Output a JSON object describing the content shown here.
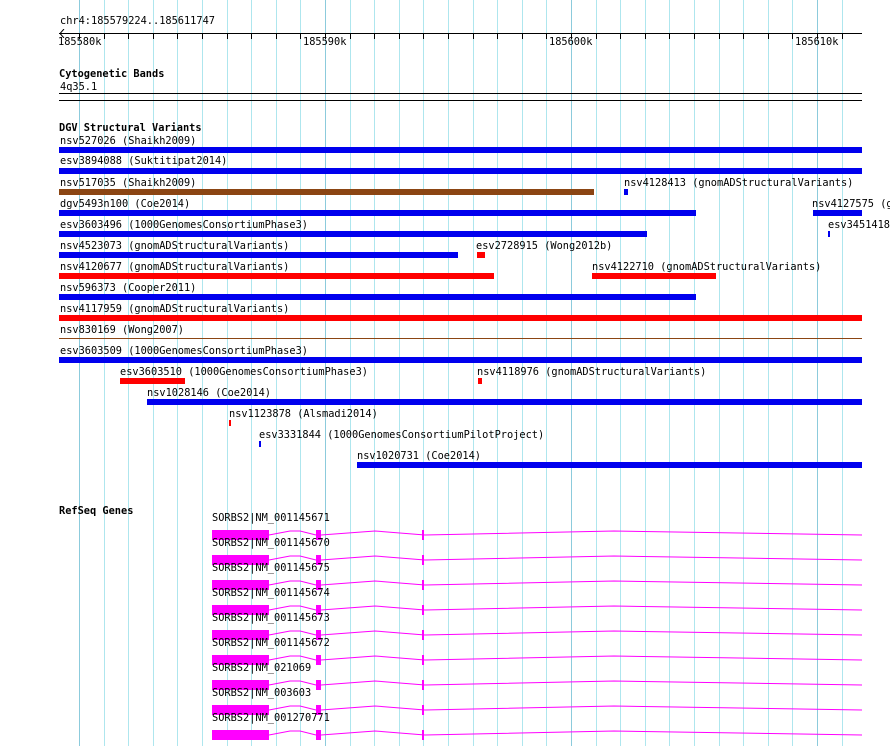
{
  "location": "chr4:185579224..185611747",
  "ruler": {
    "labels": [
      "185580k",
      "185590k",
      "185600k",
      "185610k"
    ]
  },
  "tracks": {
    "cytoband": {
      "title": "Cytogenetic Bands",
      "band": "4q35.1"
    },
    "dgv": {
      "title": "DGV Structural Variants",
      "features": [
        "nsv527026 (Shaikh2009)",
        "esv3894088 (Suktitipat2014)",
        "nsv517035 (Shaikh2009)",
        "nsv4128413 (gnomADStructuralVariants)",
        "dgv5493n100 (Coe2014)",
        "nsv4127575 (g",
        "esv3603496 (1000GenomesConsortiumPhase3)",
        "esv3451418",
        "nsv4523073 (gnomADStructuralVariants)",
        "esv2728915 (Wong2012b)",
        "nsv4120677 (gnomADStructuralVariants)",
        "nsv4122710 (gnomADStructuralVariants)",
        "nsv596373 (Cooper2011)",
        "nsv4117959 (gnomADStructuralVariants)",
        "nsv830169 (Wong2007)",
        "esv3603509 (1000GenomesConsortiumPhase3)",
        "esv3603510 (1000GenomesConsortiumPhase3)",
        "nsv4118976 (gnomADStructuralVariants)",
        "nsv1028146 (Coe2014)",
        "nsv1123878 (Alsmadi2014)",
        "esv3331844 (1000GenomesConsortiumPilotProject)",
        "nsv1020731 (Coe2014)"
      ]
    },
    "refseq": {
      "title": "RefSeq Genes",
      "genes": [
        "SORBS2|NM_001145671",
        "SORBS2|NM_001145670",
        "SORBS2|NM_001145675",
        "SORBS2|NM_001145674",
        "SORBS2|NM_001145673",
        "SORBS2|NM_001145672",
        "SORBS2|NM_021069",
        "SORBS2|NM_003603",
        "SORBS2|NM_001270771"
      ]
    }
  },
  "colors": {
    "blue": "#0000ee",
    "red": "#ff0000",
    "brown": "#8b4513",
    "gene": "#ff00ff",
    "grid": "#aee6ee"
  }
}
